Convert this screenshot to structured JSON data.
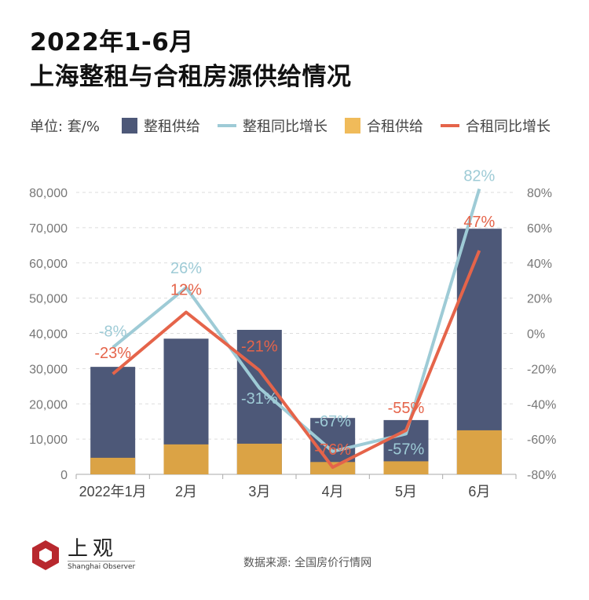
{
  "title_line1": "2022年1-6月",
  "title_line2": "上海整租与合租房源供给情况",
  "unit_label": "单位: 套/%",
  "source": "数据来源: 全国房价行情网",
  "logo": {
    "cn": "上观",
    "en": "Shanghai Observer"
  },
  "colors": {
    "whole_bar": "#4d5878",
    "shared_bar": "#dba345",
    "whole_line": "#9ecbd6",
    "shared_line": "#e5644a",
    "grid": "#dddddd",
    "axis_text": "#777777"
  },
  "chart_data": {
    "type": "bar+line",
    "categories": [
      "2022年1月",
      "2月",
      "3月",
      "4月",
      "5月",
      "6月"
    ],
    "left_axis": {
      "min": 0,
      "max": 80000,
      "ticks": [
        "0",
        "10,000",
        "20,000",
        "30,000",
        "40,000",
        "50,000",
        "60,000",
        "70,000",
        "80,000"
      ],
      "tick_values": [
        0,
        10000,
        20000,
        30000,
        40000,
        50000,
        60000,
        70000,
        80000
      ]
    },
    "right_axis": {
      "min": -80,
      "max": 80,
      "ticks": [
        "-80%",
        "-60%",
        "-40%",
        "-20%",
        "0%",
        "20%",
        "40%",
        "60%",
        "80%"
      ],
      "tick_values": [
        -80,
        -60,
        -40,
        -20,
        0,
        20,
        40,
        60,
        80
      ]
    },
    "grid": true,
    "legend_position": "top",
    "series": [
      {
        "name": "整租供给",
        "type": "bar",
        "axis": "left",
        "values": [
          30500,
          38500,
          41000,
          16000,
          15400,
          69700
        ]
      },
      {
        "name": "整租同比增长",
        "type": "line",
        "axis": "right",
        "values": [
          -8,
          26,
          -31,
          -67,
          -57,
          82
        ],
        "labels": [
          "-8%",
          "26%",
          "-31%",
          "-67%",
          "-57%",
          "82%"
        ]
      },
      {
        "name": "合租供给",
        "type": "bar",
        "axis": "left",
        "values": [
          4700,
          8500,
          8700,
          3500,
          3700,
          12500
        ]
      },
      {
        "name": "合租同比增长",
        "type": "line",
        "axis": "right",
        "values": [
          -23,
          12,
          -21,
          -76,
          -55,
          47
        ],
        "labels": [
          "-23%",
          "12%",
          "-21%",
          "-76%",
          "-55%",
          "47%"
        ]
      }
    ]
  }
}
